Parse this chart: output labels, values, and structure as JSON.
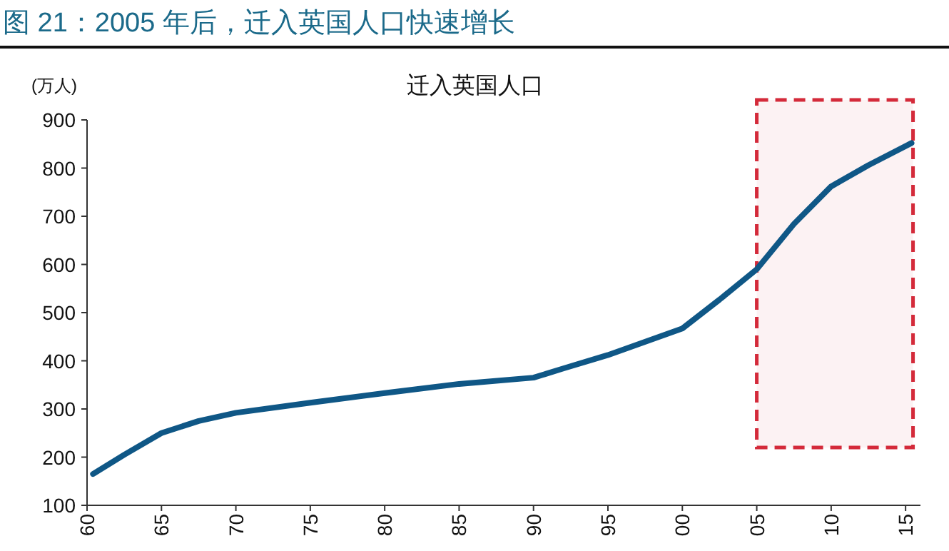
{
  "chart_data": {
    "type": "line",
    "title": "图 21：2005 年后，迁入英国人口快速增长",
    "subtitle": "迁入英国人口",
    "ylabel": "(万人)",
    "x": [
      1960.4,
      1962.5,
      1965,
      1967.5,
      1970,
      1975,
      1980,
      1985,
      1990,
      1992,
      1995,
      2000,
      2002.5,
      2005,
      2007.5,
      2010,
      2012.5,
      2015.4
    ],
    "series": [
      {
        "color": "#0f5786",
        "values": [
          165,
          205,
          250,
          275,
          292,
          313,
          333,
          352,
          365,
          384,
          412,
          467,
          527,
          590,
          684,
          762,
          806,
          852
        ]
      }
    ],
    "xlim": [
      1960,
      2016
    ],
    "ylim": [
      100,
      900
    ],
    "xticks": [
      {
        "value": 1960,
        "label": "60"
      },
      {
        "value": 1965,
        "label": "65"
      },
      {
        "value": 1970,
        "label": "70"
      },
      {
        "value": 1975,
        "label": "75"
      },
      {
        "value": 1980,
        "label": "80"
      },
      {
        "value": 1985,
        "label": "85"
      },
      {
        "value": 1990,
        "label": "90"
      },
      {
        "value": 1995,
        "label": "95"
      },
      {
        "value": 2000,
        "label": "00"
      },
      {
        "value": 2005,
        "label": "05"
      },
      {
        "value": 2010,
        "label": "10"
      },
      {
        "value": 2015,
        "label": "15"
      }
    ],
    "yticks": [
      100,
      200,
      300,
      400,
      500,
      600,
      700,
      800,
      900
    ],
    "bands": [
      {
        "axis": "x",
        "from": 2005,
        "to": 2015.5,
        "color": "#d42a3a"
      }
    ],
    "grid": false,
    "marker": "none",
    "line_style": "solid"
  }
}
